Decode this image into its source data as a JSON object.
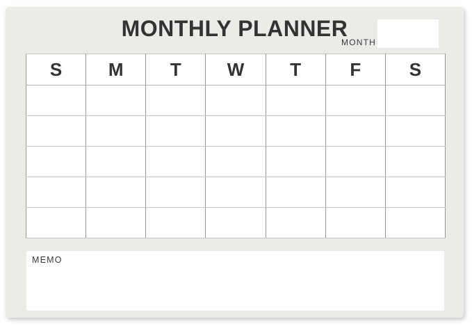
{
  "planner": {
    "title": "MONTHLY PLANNER",
    "month": {
      "label": "MONTH",
      "value": ""
    },
    "calendar": {
      "day_headers": [
        "S",
        "M",
        "T",
        "W",
        "T",
        "F",
        "S"
      ],
      "week_rows": 5,
      "cells_empty": true
    },
    "memo": {
      "label": "MEMO",
      "value": ""
    }
  },
  "colors": {
    "page_bg": "#ffffff",
    "card_bg": "#ebebe8",
    "cell_bg": "#ffffff",
    "grid_line_vertical": "#979797",
    "grid_line_horizontal": "#c6c6c6",
    "heading_text": "#333333",
    "label_text": "#3a3a3a"
  }
}
